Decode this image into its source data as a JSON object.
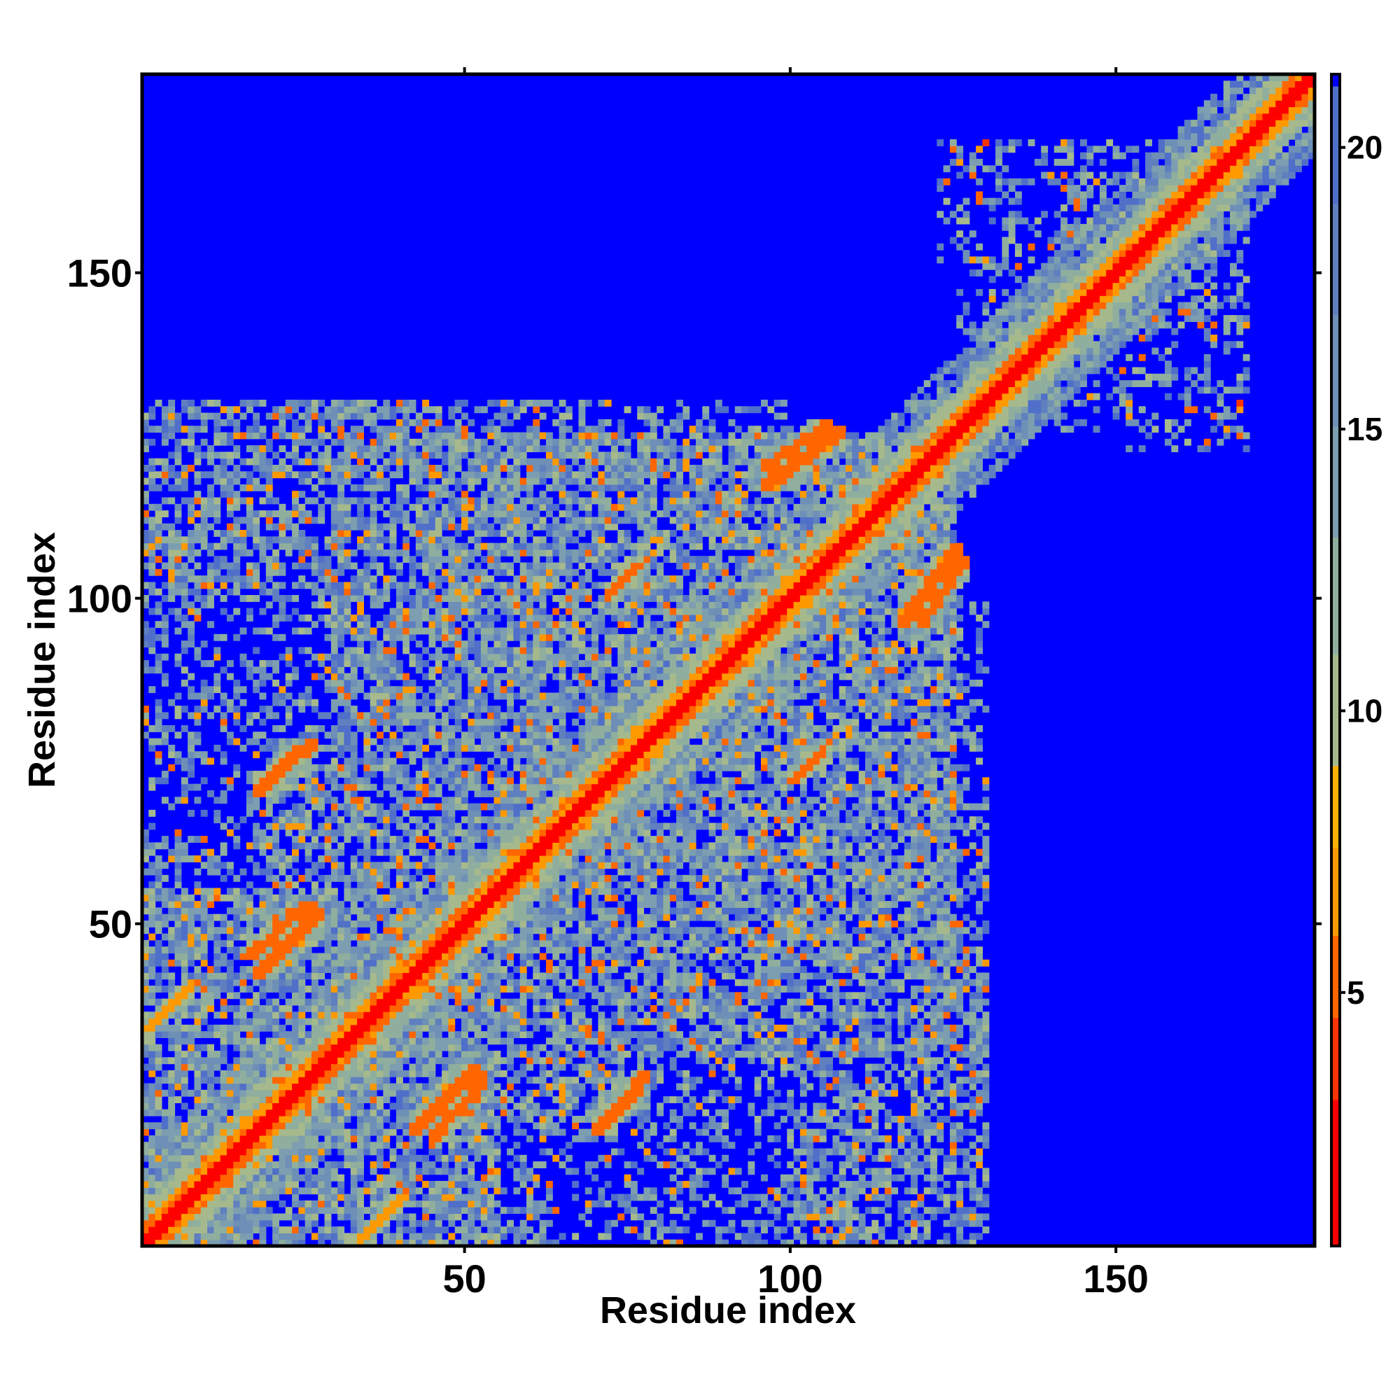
{
  "chart_data": {
    "type": "heatmap",
    "title": "",
    "xlabel": "Residue index",
    "ylabel": "Residue index",
    "n_residues": 180,
    "xlim": [
      1,
      180
    ],
    "ylim": [
      1,
      180
    ],
    "x_ticks": [
      50,
      100,
      150
    ],
    "y_ticks": [
      50,
      100,
      150
    ],
    "colorbar": {
      "ticks": [
        5,
        10,
        15,
        20
      ],
      "range": [
        0.5,
        21.3
      ],
      "cutoff_max": 21,
      "colors": [
        {
          "max": 3.0,
          "color": "#ff0000"
        },
        {
          "max": 4.5,
          "color": "#ff3300"
        },
        {
          "max": 6.0,
          "color": "#ff6600"
        },
        {
          "max": 7.5,
          "color": "#ff9900"
        },
        {
          "max": 9.0,
          "color": "#ffb000"
        },
        {
          "max": 11.0,
          "color": "#a6b98c"
        },
        {
          "max": 13.0,
          "color": "#8fae9e"
        },
        {
          "max": 15.0,
          "color": "#7c9eb0"
        },
        {
          "max": 17.0,
          "color": "#6e8fb6"
        },
        {
          "max": 19.0,
          "color": "#5f7fbf"
        },
        {
          "max": 21.0,
          "color": "#4f6fc9"
        },
        {
          "max": 999,
          "color": "#0000ff"
        }
      ]
    },
    "contact_features": [
      {
        "kind": "diagonal",
        "from": 1,
        "to": 180,
        "halfwidth": 4.5
      },
      {
        "kind": "region",
        "x": [
          1,
          55
        ],
        "y": [
          1,
          55
        ],
        "density": "high"
      },
      {
        "kind": "region",
        "x": [
          1,
          75
        ],
        "y": [
          20,
          115
        ],
        "density": "medium"
      },
      {
        "kind": "region",
        "x": [
          45,
          125
        ],
        "y": [
          30,
          125
        ],
        "density": "high"
      },
      {
        "kind": "region",
        "x": [
          100,
          130
        ],
        "y": [
          1,
          100
        ],
        "density": "medium"
      },
      {
        "kind": "region",
        "x": [
          1,
          50
        ],
        "y": [
          118,
          130
        ],
        "density": "medium"
      },
      {
        "kind": "region",
        "x": [
          126,
          170
        ],
        "y": [
          140,
          170
        ],
        "density": "low"
      },
      {
        "kind": "region",
        "x": [
          152,
          170
        ],
        "y": [
          123,
          135
        ],
        "density": "low"
      },
      {
        "kind": "band",
        "x": [
          42,
          52
        ],
        "y": [
          18,
          28
        ],
        "value": 6
      },
      {
        "kind": "band",
        "x": [
          70,
          78
        ],
        "y": [
          18,
          27
        ],
        "value": 6
      },
      {
        "kind": "band",
        "x": [
          17,
          26
        ],
        "y": [
          45,
          53
        ],
        "value": 6
      },
      {
        "kind": "band",
        "x": [
          18,
          25
        ],
        "y": [
          71,
          77
        ],
        "value": 6
      },
      {
        "kind": "band",
        "x": [
          72,
          78
        ],
        "y": [
          101,
          106
        ],
        "value": 6
      },
      {
        "kind": "band",
        "x": [
          100,
          106
        ],
        "y": [
          72,
          78
        ],
        "value": 6
      },
      {
        "kind": "band",
        "x": [
          96,
          108
        ],
        "y": [
          117,
          126
        ],
        "value": 6
      },
      {
        "kind": "band",
        "x": [
          120,
          127
        ],
        "y": [
          96,
          106
        ],
        "value": 6
      },
      {
        "kind": "band",
        "x": [
          1,
          8
        ],
        "y": [
          34,
          40
        ],
        "value": 7
      },
      {
        "kind": "band",
        "x": [
          34,
          40
        ],
        "y": [
          1,
          8
        ],
        "value": 7
      },
      {
        "kind": "point",
        "x": 130,
        "y": 170,
        "value": 4
      },
      {
        "kind": "point",
        "x": 169,
        "y": 130,
        "value": 4
      }
    ]
  }
}
